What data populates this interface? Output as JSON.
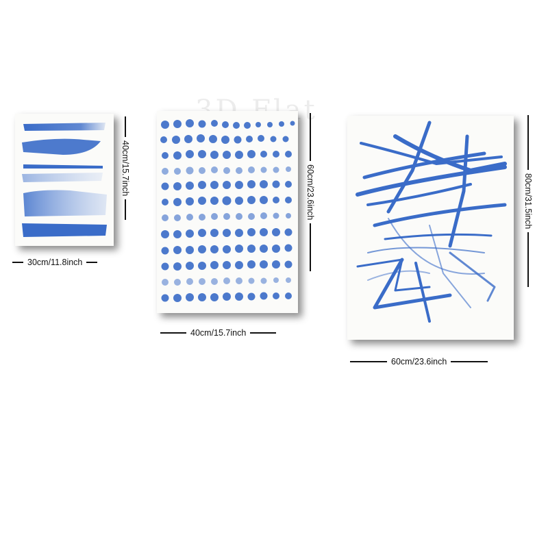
{
  "watermark": "3D Flat",
  "panels": [
    {
      "id": "brush-strokes",
      "width_label": "30cm/11.8inch",
      "height_label": "40cm/15.7inch"
    },
    {
      "id": "dots",
      "width_label": "40cm/15.7inch",
      "height_label": "60cm/23.6inch"
    },
    {
      "id": "scribbles",
      "width_label": "60cm/23.6inch",
      "height_label": "80cm/31.5inch"
    }
  ],
  "colors": {
    "paint": "#3a6cc8",
    "paint_light": "#7fa0dc",
    "paper": "#fbfbf9",
    "text": "#111111"
  }
}
